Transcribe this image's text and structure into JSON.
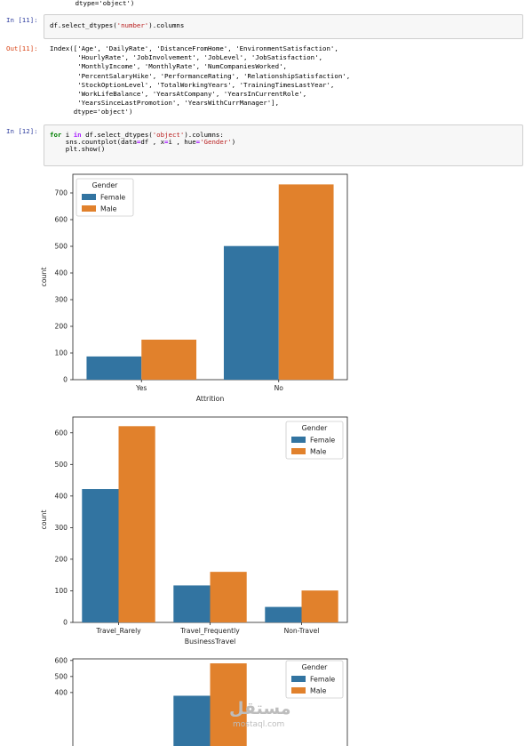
{
  "top_fragment": "        dtype='object')",
  "cells": [
    {
      "prompt": "In [11]:",
      "code_parts": [
        {
          "t": "df.select_dtypes(",
          "c": ""
        },
        {
          "t": "'number'",
          "c": "str"
        },
        {
          "t": ").columns",
          "c": ""
        }
      ]
    },
    {
      "prompt": "In [12]:",
      "lines": [
        [
          {
            "t": "for",
            "c": "kw"
          },
          {
            "t": " i ",
            "c": ""
          },
          {
            "t": "in",
            "c": "op"
          },
          {
            "t": " df.select_dtypes(",
            "c": ""
          },
          {
            "t": "'object'",
            "c": "str"
          },
          {
            "t": ").columns:",
            "c": ""
          }
        ],
        [
          {
            "t": "    sns.countplot(data",
            "c": ""
          },
          {
            "t": "=",
            "c": "op"
          },
          {
            "t": "df , x",
            "c": ""
          },
          {
            "t": "=",
            "c": "op"
          },
          {
            "t": "i , hue",
            "c": ""
          },
          {
            "t": "=",
            "c": "op"
          },
          {
            "t": "'Gender'",
            "c": "str"
          },
          {
            "t": ")",
            "c": ""
          }
        ],
        [
          {
            "t": "    plt.show()",
            "c": ""
          }
        ]
      ]
    }
  ],
  "output_11": {
    "prompt": "Out[11]:",
    "lines": [
      "Index(['Age', 'DailyRate', 'DistanceFromHome', 'EnvironmentSatisfaction',",
      "       'HourlyRate', 'JobInvolvement', 'JobLevel', 'JobSatisfaction',",
      "       'MonthlyIncome', 'MonthlyRate', 'NumCompaniesWorked',",
      "       'PercentSalaryHike', 'PerformanceRating', 'RelationshipSatisfaction',",
      "       'StockOptionLevel', 'TotalWorkingYears', 'TrainingTimesLastYear',",
      "       'WorkLifeBalance', 'YearsAtCompany', 'YearsInCurrentRole',",
      "       'YearsSinceLastPromotion', 'YearsWithCurrManager'],",
      "      dtype='object')"
    ]
  },
  "colors": {
    "female": "#3274a1",
    "male": "#e1812c"
  },
  "chart_data": [
    {
      "type": "bar",
      "xlabel": "Attrition",
      "ylabel": "count",
      "categories": [
        "Yes",
        "No"
      ],
      "yticks": [
        0,
        100,
        200,
        300,
        400,
        500,
        600,
        700
      ],
      "ylim": [
        0,
        770
      ],
      "legend": {
        "title": "Gender",
        "placement": "top-left"
      },
      "series": [
        {
          "name": "Female",
          "values": [
            87,
            501
          ]
        },
        {
          "name": "Male",
          "values": [
            150,
            732
          ]
        }
      ]
    },
    {
      "type": "bar",
      "xlabel": "BusinessTravel",
      "ylabel": "count",
      "categories": [
        "Travel_Rarely",
        "Travel_Frequently",
        "Non-Travel"
      ],
      "yticks": [
        0,
        100,
        200,
        300,
        400,
        500,
        600
      ],
      "ylim": [
        0,
        650
      ],
      "legend": {
        "title": "Gender",
        "placement": "top-right"
      },
      "series": [
        {
          "name": "Female",
          "values": [
            422,
            117,
            49
          ]
        },
        {
          "name": "Male",
          "values": [
            621,
            160,
            101
          ]
        }
      ]
    },
    {
      "type": "bar",
      "xlabel": "",
      "ylabel": "",
      "categories": [
        "",
        "",
        ""
      ],
      "yticks": [
        400,
        500,
        600
      ],
      "ylim": [
        0,
        610
      ],
      "legend": {
        "title": "Gender",
        "placement": "top-right"
      },
      "series": [
        {
          "name": "Female",
          "values": [
            0,
            380,
            0
          ]
        },
        {
          "name": "Male",
          "values": [
            0,
            582,
            0
          ]
        }
      ]
    }
  ],
  "watermark": {
    "arabic": "مستقل",
    "latin": "mostaql.com"
  }
}
